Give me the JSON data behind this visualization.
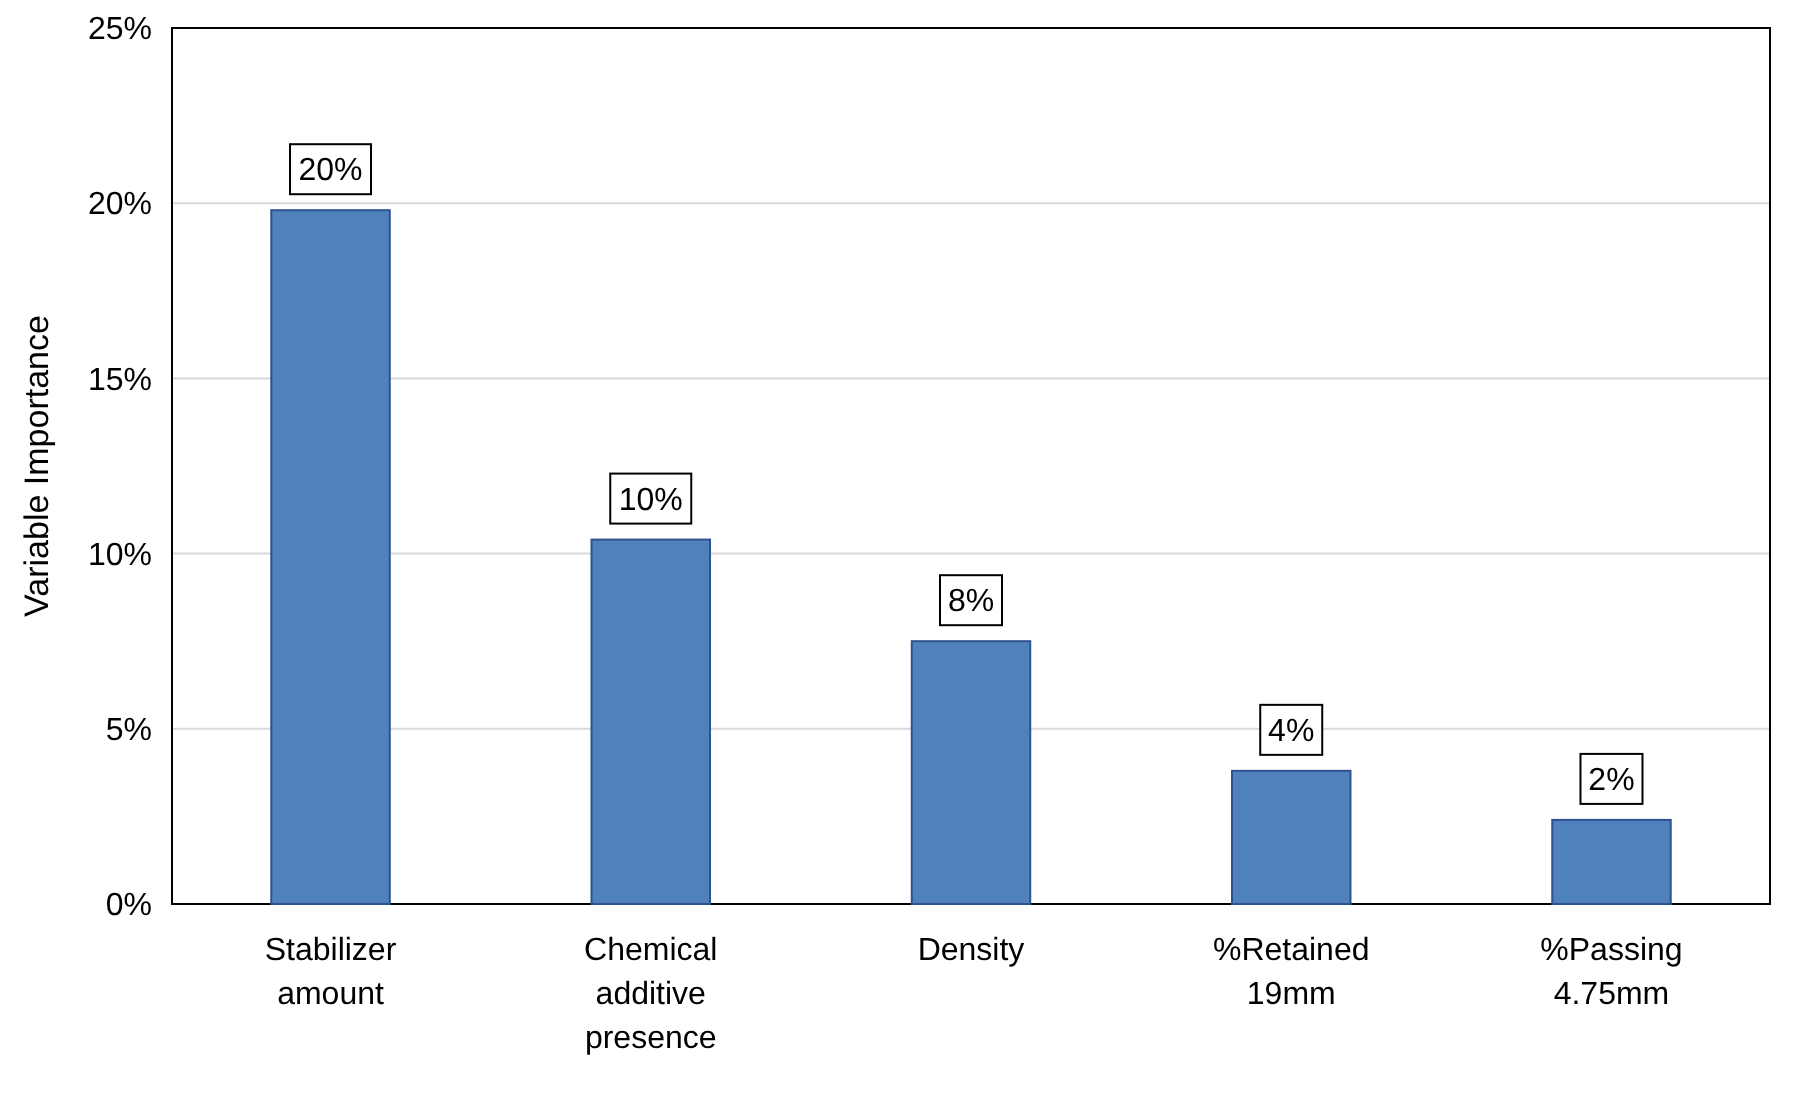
{
  "chart_data": {
    "type": "bar",
    "ylabel": "Variable Importance",
    "categories": [
      "Stabilizer amount",
      "Chemical additive presence",
      "Density",
      "%Retained 19mm",
      "%Passing 4.75mm"
    ],
    "values": [
      19.8,
      10.4,
      7.5,
      3.8,
      2.4
    ],
    "value_labels": [
      "20%",
      "10%",
      "8%",
      "4%",
      "2%"
    ],
    "color": "#4f81bd",
    "ylim": [
      0,
      25
    ],
    "yticks": [
      {
        "value": 0,
        "label": "0%"
      },
      {
        "value": 5,
        "label": "5%"
      },
      {
        "value": 10,
        "label": "10%"
      },
      {
        "value": 15,
        "label": "15%"
      },
      {
        "value": 20,
        "label": "20%"
      },
      {
        "value": 25,
        "label": "25%"
      }
    ],
    "grid": "y"
  }
}
